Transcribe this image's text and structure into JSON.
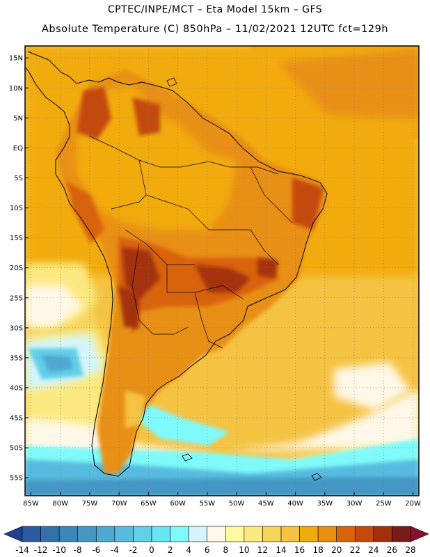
{
  "header": {
    "line1": "CPTEC/INPE/MCT –  Eta Model 15km – GFS",
    "line2": "Absolute Temperature (C) 850hPa – 11/02/2021 12UTC fct=129h"
  },
  "map": {
    "variable": "Absolute Temperature",
    "units": "C",
    "level": "850hPa",
    "lon_range": [
      -86,
      -19
    ],
    "lat_range": [
      -58,
      17
    ],
    "lat_ticks": [
      "15N",
      "10N",
      "5N",
      "EQ",
      "5S",
      "10S",
      "15S",
      "20S",
      "25S",
      "30S",
      "35S",
      "40S",
      "45S",
      "50S",
      "55S"
    ],
    "lon_ticks": [
      "85W",
      "80W",
      "75W",
      "70W",
      "65W",
      "60W",
      "55W",
      "50W",
      "45W",
      "40W",
      "35W",
      "30W",
      "25W",
      "20W"
    ],
    "grid": true,
    "gridlines": "dotted"
  },
  "colorbar": {
    "labels": [
      "-14",
      "-12",
      "-10",
      "-8",
      "-6",
      "-4",
      "-2",
      "0",
      "2",
      "4",
      "6",
      "8",
      "10",
      "12",
      "14",
      "16",
      "18",
      "20",
      "22",
      "24",
      "26",
      "28"
    ],
    "colors": [
      "#1f3f8f",
      "#2a5aa0",
      "#3170ab",
      "#3b86b9",
      "#4597c6",
      "#4fa8d2",
      "#57bbde",
      "#62cfe8",
      "#66e6f2",
      "#7ffafa",
      "#d4f6fb",
      "#fff8e8",
      "#fffaa0",
      "#fbe980",
      "#f7d45a",
      "#f5c342",
      "#f2ab0f",
      "#e88f12",
      "#d9620a",
      "#c44a0a",
      "#a4300a",
      "#7a1c16",
      "#8a1030"
    ]
  }
}
